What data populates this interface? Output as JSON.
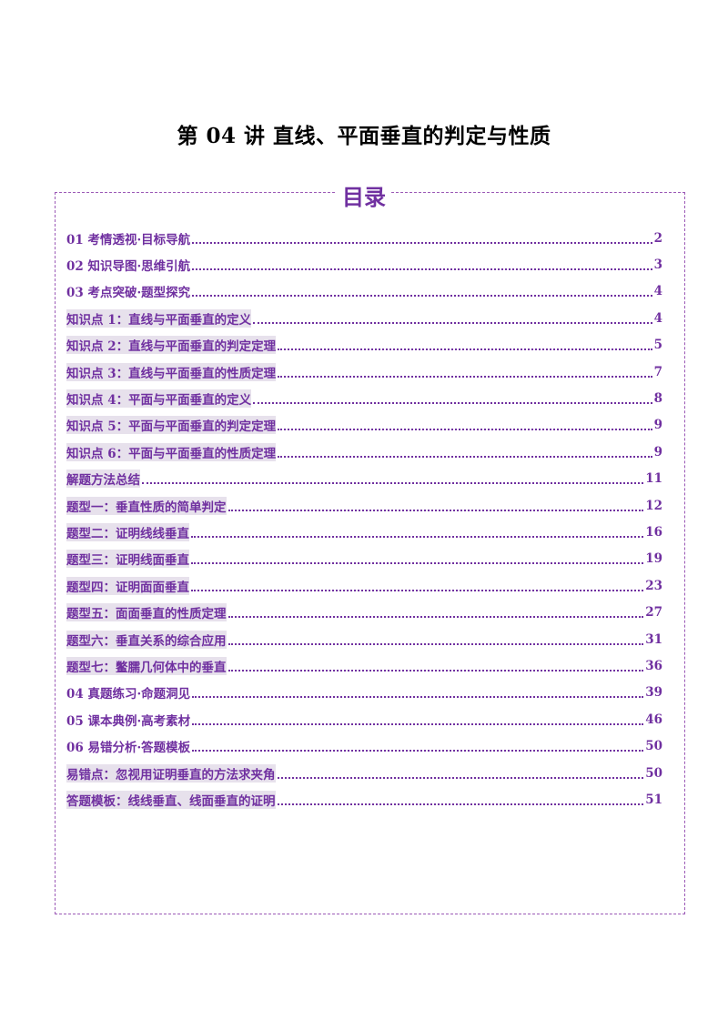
{
  "document": {
    "title": "第 04 讲  直线、平面垂直的判定与性质",
    "toc_heading": "目录"
  },
  "toc": [
    {
      "label": "01 考情透视·目标导航",
      "page": "2",
      "sub": false
    },
    {
      "label": "02 知识导图·思维引航",
      "page": "3",
      "sub": false
    },
    {
      "label": "03 考点突破·题型探究",
      "page": "4",
      "sub": false
    },
    {
      "label": "知识点 1：直线与平面垂直的定义",
      "page": "4",
      "sub": true
    },
    {
      "label": "知识点 2：直线与平面垂直的判定定理",
      "page": "5",
      "sub": true
    },
    {
      "label": "知识点 3：直线与平面垂直的性质定理",
      "page": "7",
      "sub": true
    },
    {
      "label": "知识点 4：平面与平面垂直的定义",
      "page": "8",
      "sub": true
    },
    {
      "label": "知识点 5：平面与平面垂直的判定定理",
      "page": "9",
      "sub": true
    },
    {
      "label": "知识点 6：平面与平面垂直的性质定理",
      "page": "9",
      "sub": true
    },
    {
      "label": "解题方法总结",
      "page": "11",
      "sub": true
    },
    {
      "label": "题型一：垂直性质的简单判定",
      "page": "12",
      "sub": true
    },
    {
      "label": "题型二：证明线线垂直",
      "page": "16",
      "sub": true
    },
    {
      "label": "题型三：证明线面垂直",
      "page": "19",
      "sub": true
    },
    {
      "label": "题型四：证明面面垂直",
      "page": "23",
      "sub": true
    },
    {
      "label": "题型五：面面垂直的性质定理",
      "page": "27",
      "sub": true
    },
    {
      "label": "题型六：垂直关系的综合应用",
      "page": "31",
      "sub": true
    },
    {
      "label": "题型七：鳖臑几何体中的垂直",
      "page": "36",
      "sub": true
    },
    {
      "label": "04 真题练习·命题洞见",
      "page": "39",
      "sub": false
    },
    {
      "label": "05 课本典例·高考素材",
      "page": "46",
      "sub": false
    },
    {
      "label": "06 易错分析·答题模板",
      "page": "50",
      "sub": false
    },
    {
      "label": "易错点：忽视用证明垂直的方法求夹角",
      "page": "50",
      "sub": true
    },
    {
      "label": "答题模板：线线垂直、线面垂直的证明",
      "page": "51",
      "sub": true
    }
  ]
}
